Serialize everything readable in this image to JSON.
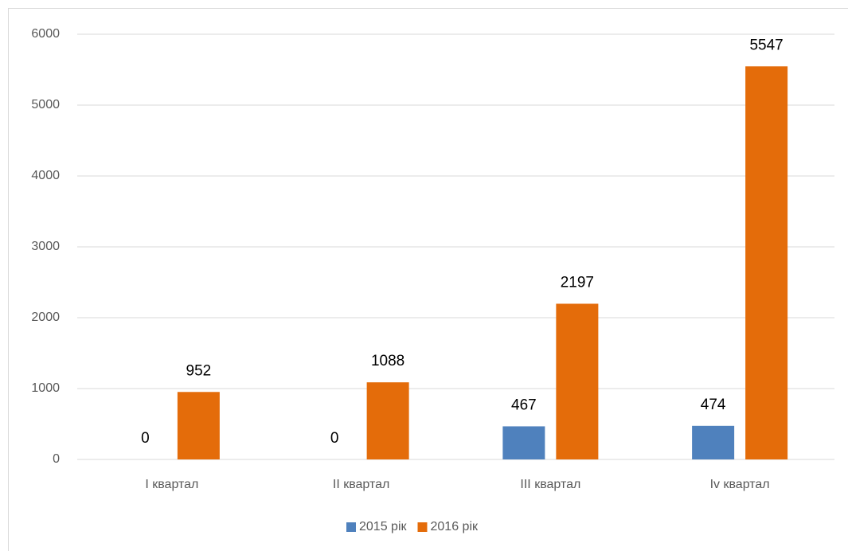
{
  "chart_data": {
    "type": "bar",
    "categories": [
      "I квартал",
      "II квартал",
      "III квартал",
      "Iv квартал"
    ],
    "series": [
      {
        "name": "2015 рік",
        "color": "#4f81bd",
        "values": [
          0,
          0,
          467,
          474
        ]
      },
      {
        "name": "2016 рік",
        "color": "#e46c0a",
        "values": [
          952,
          1088,
          2197,
          5547
        ]
      }
    ],
    "ylim": [
      0,
      6000
    ],
    "yticks": [
      0,
      1000,
      2000,
      3000,
      4000,
      5000,
      6000
    ],
    "grid": true,
    "legend": "bottom",
    "data_labels": true
  }
}
